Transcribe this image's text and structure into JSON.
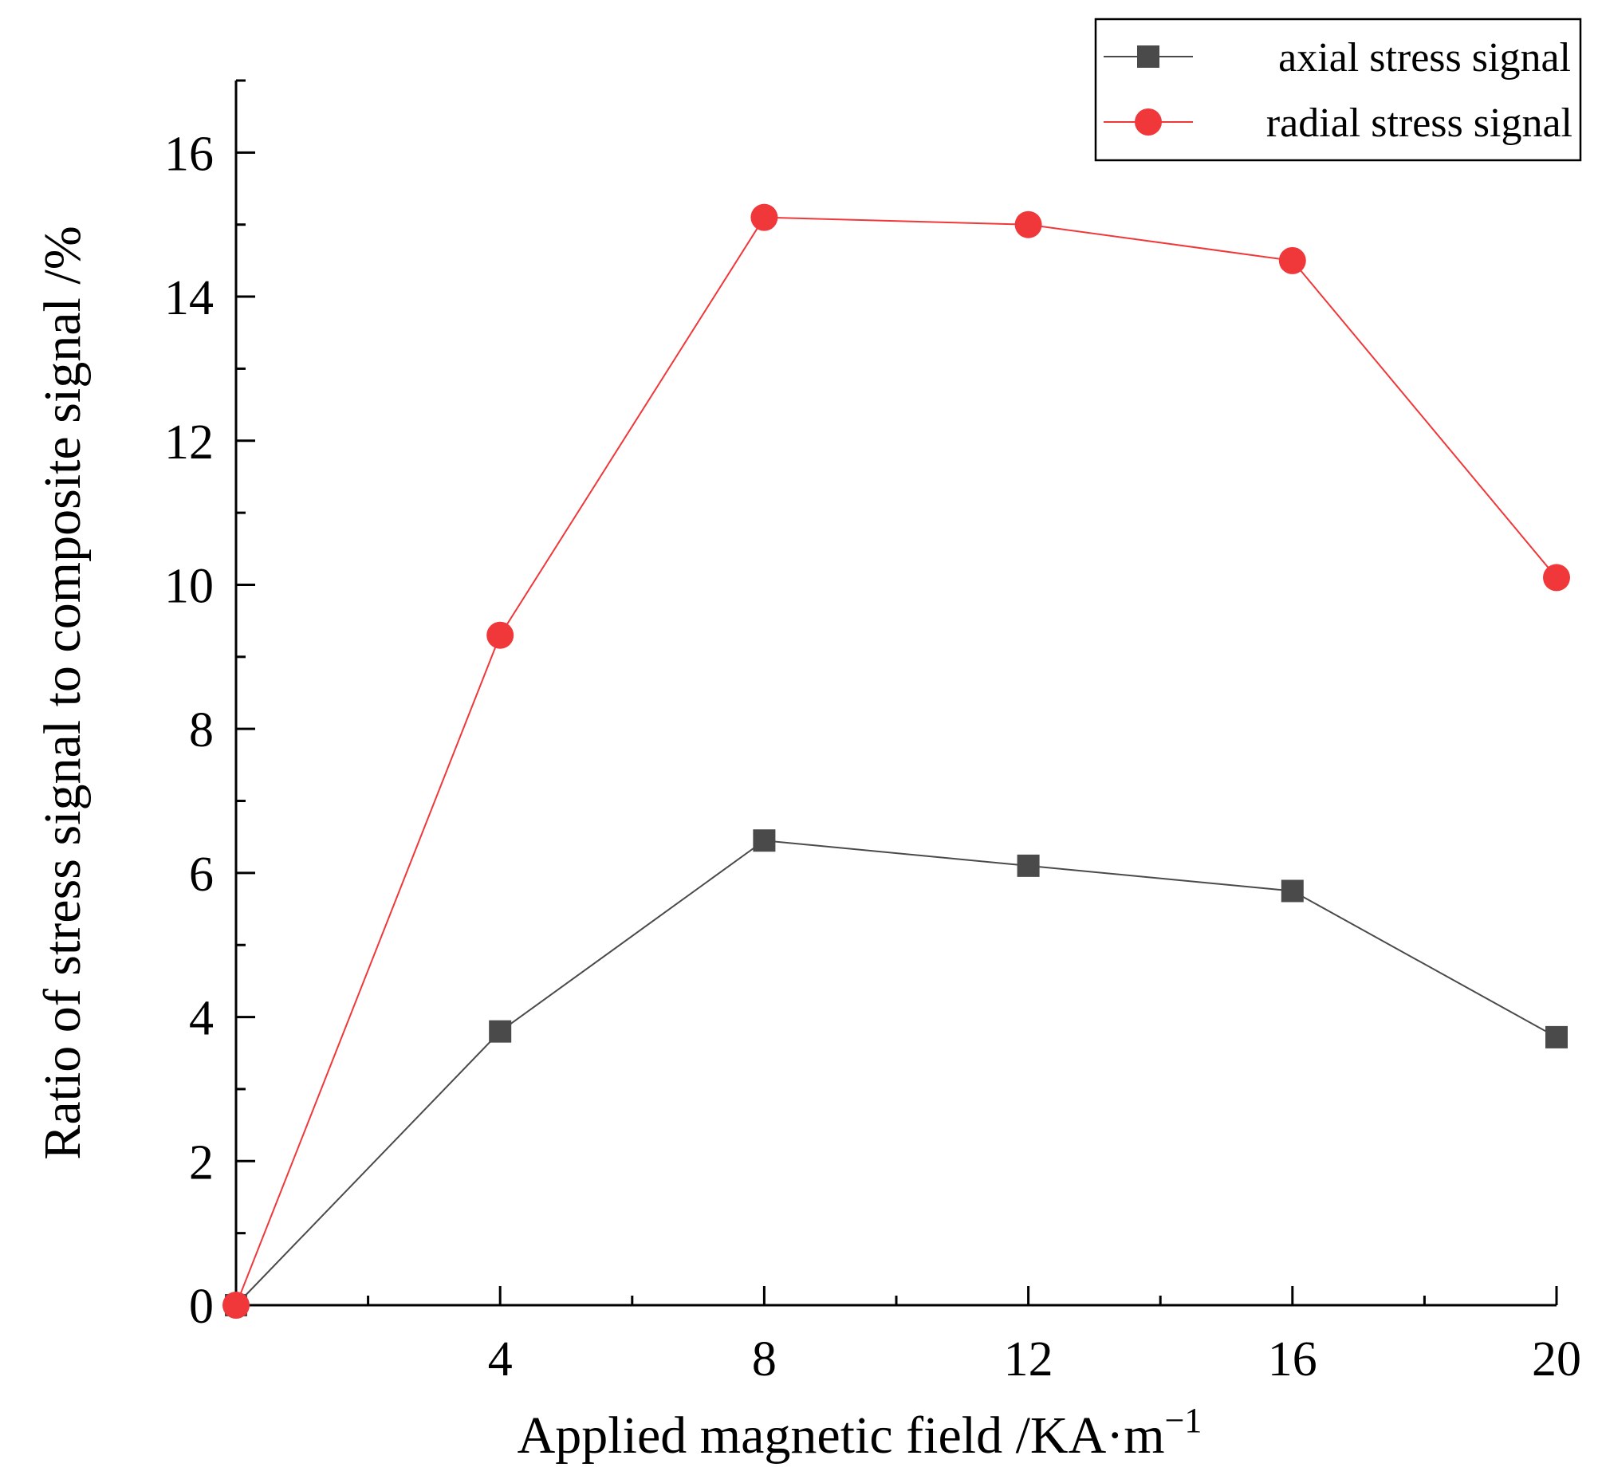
{
  "chart_data": {
    "type": "line",
    "x": [
      0,
      4,
      8,
      12,
      16,
      20
    ],
    "x_ticks": [
      "4",
      "8",
      "12",
      "16",
      "20"
    ],
    "y_ticks": [
      "0",
      "2",
      "4",
      "6",
      "8",
      "10",
      "12",
      "14",
      "16"
    ],
    "xlim": [
      0,
      20
    ],
    "ylim": [
      0,
      17
    ],
    "xlabel": "Applied magnetic field /KA·m",
    "xlabel_superscript": "−1",
    "ylabel": "Ratio of stress signal to composite signal /%",
    "grid": false,
    "legend_position": "top-right",
    "series": [
      {
        "name": "axial stress signal",
        "marker": "square",
        "color": "#4a4a4a",
        "values": [
          0,
          3.8,
          6.45,
          6.1,
          5.75,
          3.72
        ]
      },
      {
        "name": "radial stress signal",
        "marker": "circle",
        "color": "#f0383a",
        "values": [
          0,
          9.3,
          15.1,
          15.0,
          14.5,
          10.1
        ]
      }
    ]
  }
}
